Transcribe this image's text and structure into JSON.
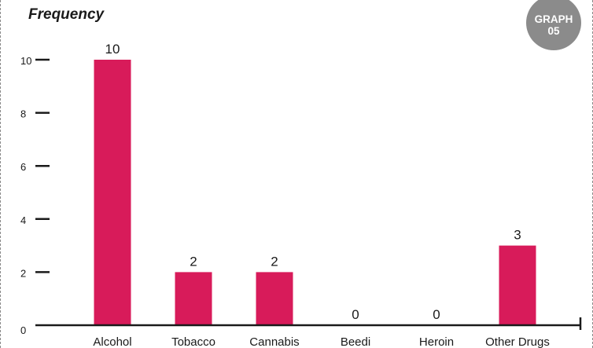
{
  "badge": {
    "line1": "GRAPH",
    "line2": "05",
    "color": "#8b8b8b"
  },
  "chart_data": {
    "type": "bar",
    "title": "",
    "xlabel": "",
    "ylabel": "Frequency",
    "categories": [
      "Alcohol",
      "Tobacco",
      "Cannabis",
      "Beedi",
      "Heroin",
      "Other Drugs"
    ],
    "values": [
      10,
      2,
      2,
      0,
      0,
      3
    ],
    "data_labels": [
      "10",
      "2",
      "2",
      "0",
      "0",
      "3"
    ],
    "ylim": [
      0,
      10
    ],
    "yticks": [
      0,
      2,
      4,
      6,
      8,
      10
    ],
    "ytick_labels": [
      "0",
      "2",
      "4",
      "6",
      "8",
      "10"
    ],
    "grid": false,
    "bar_color": "#d81b5a",
    "axis_color": "#1a1a1a"
  }
}
